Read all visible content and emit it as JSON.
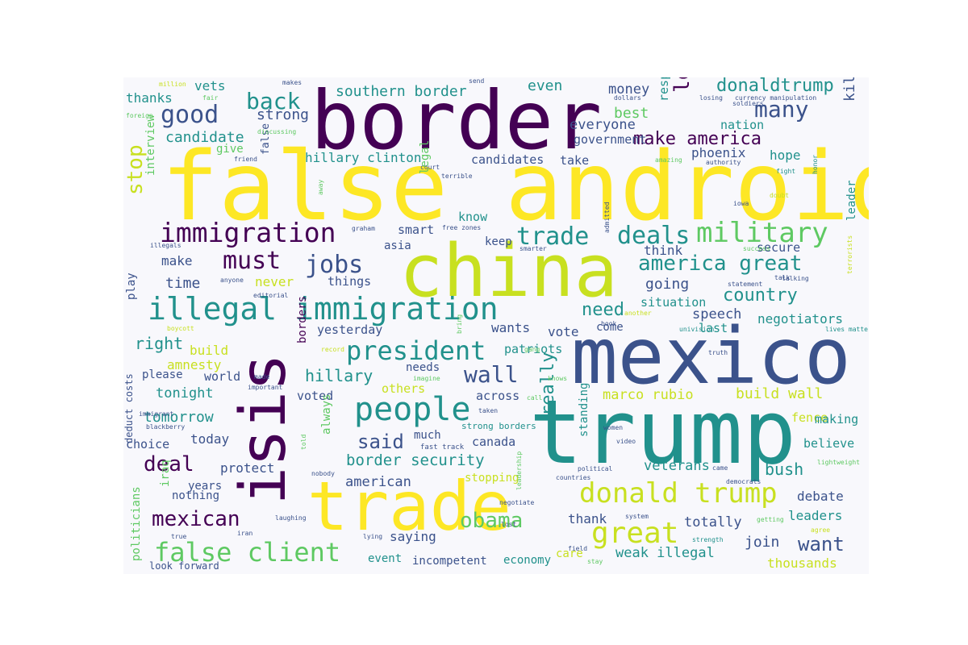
{
  "palette": {
    "dark_purple": "#440154",
    "indigo": "#3b528b",
    "teal": "#21918c",
    "green": "#5ec962",
    "yellow": "#fde725",
    "lime": "#c8e020"
  },
  "words": [
    "false android",
    "border",
    "china",
    "mexico",
    "trump",
    "trade",
    "isis",
    "illegal immigration",
    "immigration",
    "people",
    "president",
    "donald trump",
    "great",
    "false client",
    "military",
    "deals",
    "trade",
    "america great",
    "jobs",
    "must",
    "good",
    "back",
    "many",
    "love",
    "donaldtrump",
    "stop",
    "make america",
    "candidate",
    "southern border",
    "strong",
    "even",
    "money",
    "best",
    "respect",
    "everyone",
    "nation",
    "government",
    "killing",
    "phoenix",
    "hope",
    "thanks",
    "vets",
    "hillary clinton",
    "candidates",
    "take",
    "give",
    "false",
    "interview",
    "legal",
    "know",
    "smart",
    "keep",
    "asia",
    "make",
    "time",
    "never",
    "things",
    "going",
    "think",
    "secure",
    "leader",
    "country",
    "need",
    "speech",
    "situation",
    "negotiators",
    "last",
    "wants",
    "vote",
    "come",
    "yesterday",
    "right",
    "build",
    "amnesty",
    "patriots",
    "please",
    "world",
    "hillary",
    "tonight",
    "needs",
    "others",
    "across",
    "marco rubio",
    "build wall",
    "fence",
    "making",
    "tomorrow",
    "voted",
    "wall",
    "said",
    "really",
    "today",
    "choice",
    "always",
    "much",
    "canada",
    "border security",
    "deal",
    "protect",
    "veterans",
    "bush",
    "believe",
    "years",
    "iraq",
    "nothing",
    "american",
    "stopping",
    "debate",
    "mexican",
    "obama",
    "thank",
    "totally",
    "leaders",
    "saying",
    "want",
    "join",
    "care",
    "weak illegal",
    "thousands",
    "event",
    "incompetent",
    "economy",
    "look forward",
    "politicians",
    "deduct costs",
    "play",
    "borders",
    "standing",
    "strong borders",
    "fast track",
    "million",
    "makes",
    "send",
    "fair",
    "dollars",
    "losing",
    "currency manipulation",
    "soldiers",
    "foreign",
    "discussing",
    "friend",
    "court",
    "amazing",
    "authority",
    "terrible",
    "fight",
    "doubt",
    "honor",
    "iowa",
    "away",
    "graham",
    "admitted",
    "smarter",
    "success",
    "talk",
    "talking",
    "statement",
    "terrorists",
    "anyone",
    "editorial",
    "illegals",
    "boycott",
    "book",
    "univision",
    "another",
    "lives matter",
    "record",
    "bring",
    "truth",
    "gang",
    "made",
    "important",
    "imagine",
    "knows",
    "call",
    "taken",
    "immigrant",
    "blackberry",
    "told",
    "nobody",
    "countries",
    "women",
    "video",
    "political",
    "came",
    "lightweight",
    "democrats",
    "negotiate",
    "system",
    "getting",
    "agree",
    "leadership",
    "lost",
    "laughing",
    "iran",
    "true",
    "lying",
    "field",
    "stay",
    "strength",
    "free zones"
  ]
}
